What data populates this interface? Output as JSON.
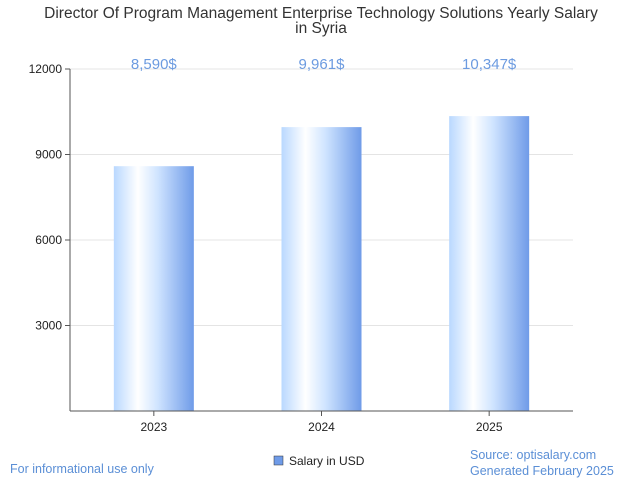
{
  "chart_data": {
    "type": "bar",
    "title_lines": [
      "Director Of Program Management Enterprise Technology Solutions Yearly Salary",
      "in Syria"
    ],
    "categories": [
      "2023",
      "2024",
      "2025"
    ],
    "series": [
      {
        "name": "Salary in USD",
        "values": [
          8590,
          9961,
          10347
        ]
      }
    ],
    "data_labels": [
      "8,590$",
      "9,961$",
      "10,347$"
    ],
    "yticks": [
      3000,
      6000,
      9000,
      12000
    ],
    "ylim": [
      0,
      12000
    ],
    "grid": true,
    "legend": "bottom-center",
    "colors": {
      "bar_light": "#ffffff",
      "bar_mid": "#b9d8ff",
      "bar_dark": "#6f9be8",
      "label": "#6c9be0"
    }
  },
  "footer": {
    "note": "For informational use only",
    "source": "Source: optisalary.com",
    "generated": "Generated February 2025"
  }
}
